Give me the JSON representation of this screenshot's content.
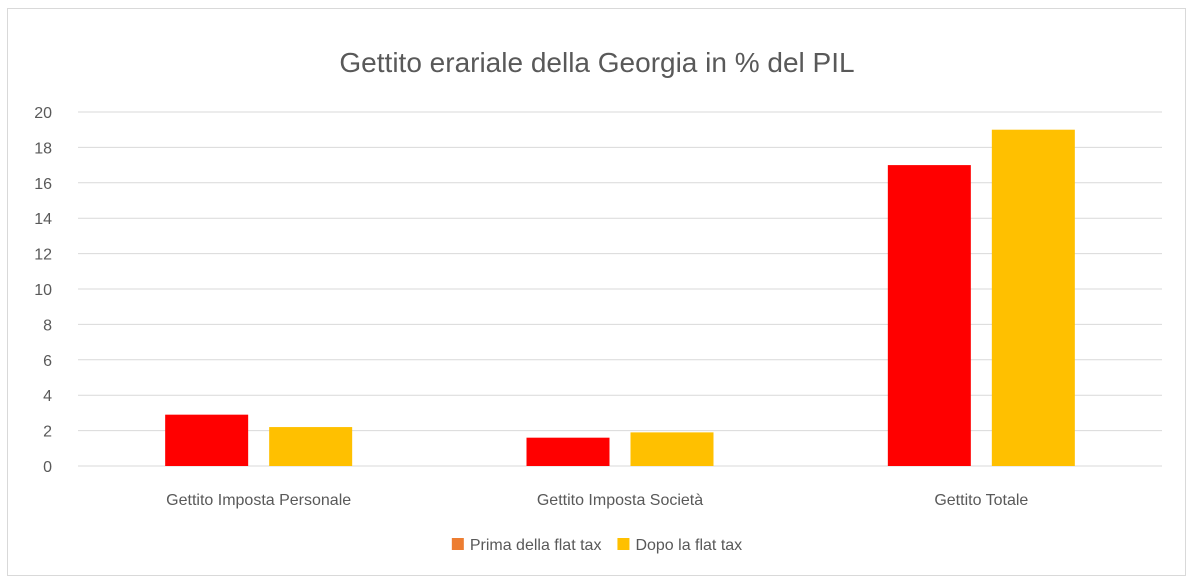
{
  "chart_data": {
    "type": "bar",
    "title": "Gettito erariale della Georgia in % del PIL",
    "xlabel": "",
    "ylabel": "",
    "ylim": [
      0,
      20
    ],
    "yticks": [
      0,
      2,
      4,
      6,
      8,
      10,
      12,
      14,
      16,
      18,
      20
    ],
    "grid": true,
    "legend_position": "bottom",
    "categories": [
      "Gettito Imposta Personale",
      "Gettito Imposta Società",
      "Gettito Totale"
    ],
    "series": [
      {
        "name": "Prima della flat tax",
        "values": [
          2.9,
          1.6,
          17.0
        ],
        "color": "#ff0000",
        "legend_color": "#ed7d31"
      },
      {
        "name": "Dopo la flat tax",
        "values": [
          2.2,
          1.9,
          19.0
        ],
        "color": "#ffc000",
        "legend_color": "#ffc000"
      }
    ]
  }
}
